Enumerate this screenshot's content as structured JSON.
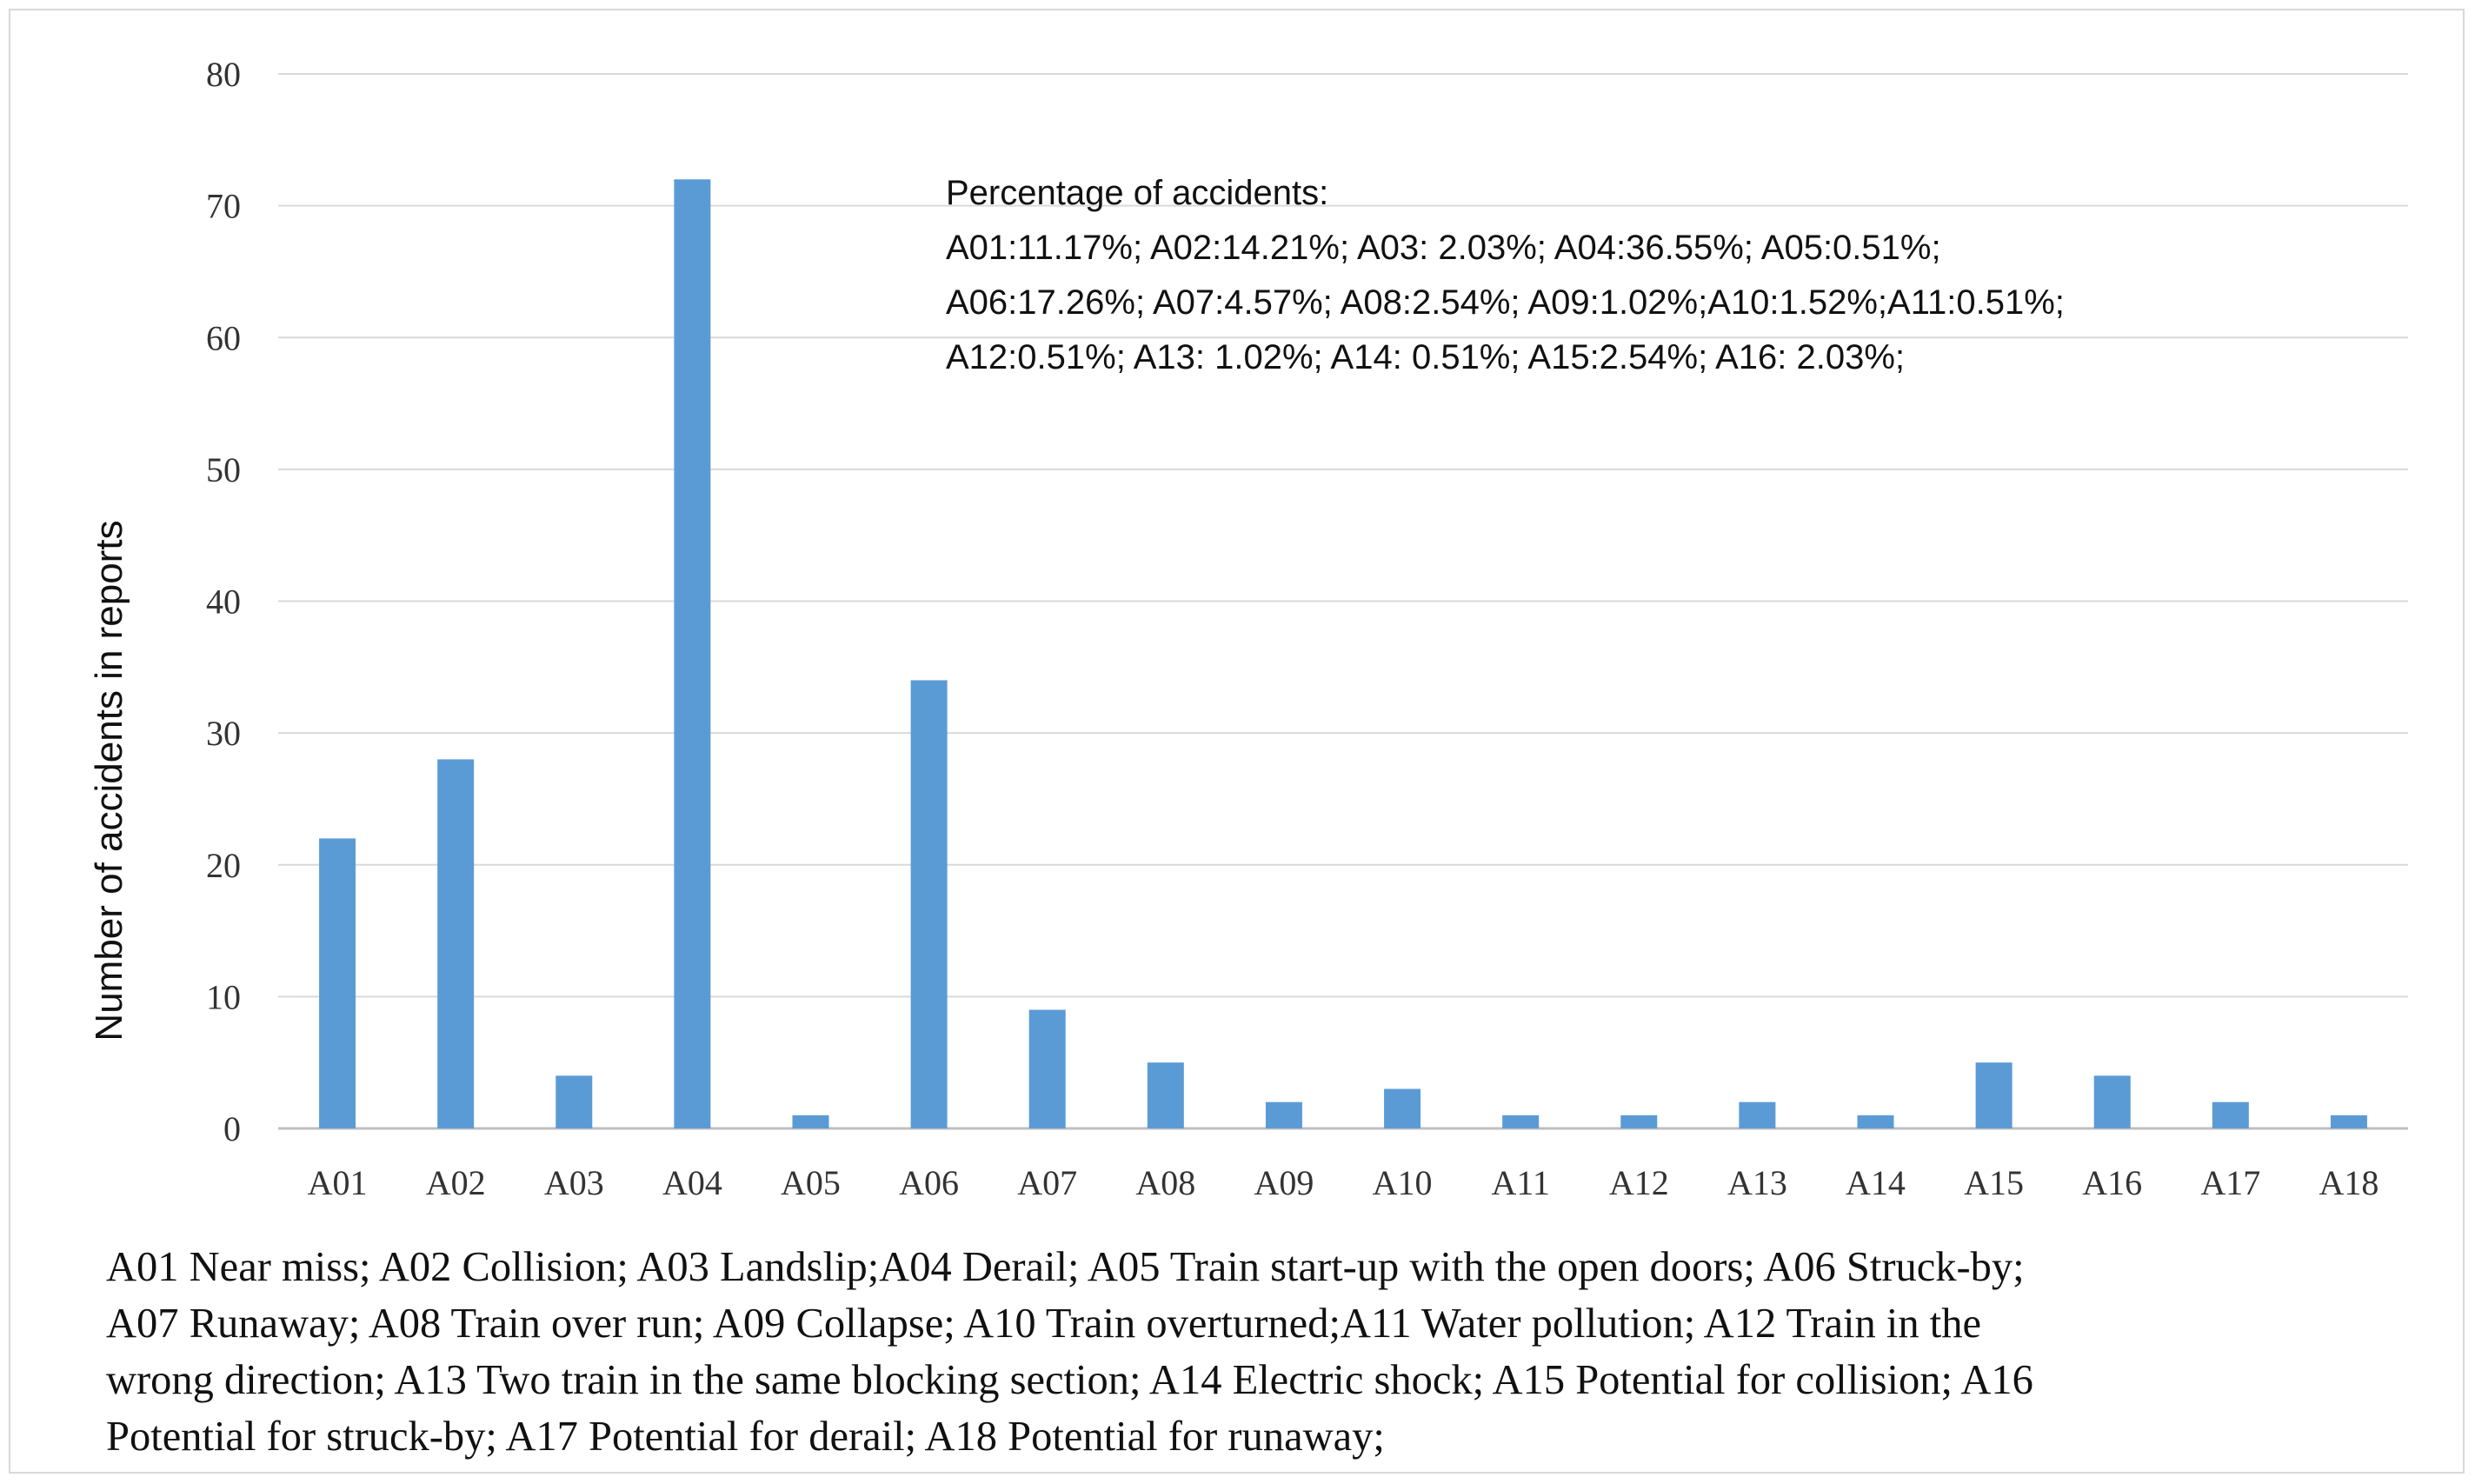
{
  "chart_data": {
    "type": "bar",
    "categories": [
      "A01",
      "A02",
      "A03",
      "A04",
      "A05",
      "A06",
      "A07",
      "A08",
      "A09",
      "A10",
      "A11",
      "A12",
      "A13",
      "A14",
      "A15",
      "A16",
      "A17",
      "A18"
    ],
    "values": [
      22,
      28,
      4,
      72,
      1,
      34,
      9,
      5,
      2,
      3,
      1,
      1,
      2,
      1,
      5,
      4,
      2,
      1
    ],
    "title": "",
    "xlabel": "",
    "ylabel": "Number of accidents in reports",
    "ylim": [
      0,
      80
    ],
    "yticks": [
      0,
      10,
      20,
      30,
      40,
      50,
      60,
      70,
      80
    ],
    "grid": true,
    "bar_color": "#5b9bd5",
    "annotation": [
      "Percentage of accidents:",
      "A01:11.17%; A02:14.21%; A03: 2.03%; A04:36.55%; A05:0.51%;",
      "A06:17.26%; A07:4.57%; A08:2.54%; A09:1.02%;A10:1.52%;A11:0.51%;",
      "A12:0.51%; A13: 1.02%; A14: 0.51%; A15:2.54%; A16: 2.03%;"
    ]
  },
  "caption": [
    "A01 Near miss; A02 Collision; A03 Landslip;A04  Derail;  A05 Train start-up with the open doors; A06 Struck-by;",
    "A07 Runaway;  A08 Train over run; A09 Collapse; A10 Train overturned;A11  Water pollution; A12 Train in the",
    "wrong direction; A13 Two train in the same blocking section; A14 Electric shock; A15 Potential for collision;  A16",
    "Potential for struck-by;  A17 Potential for derail; A18 Potential for runaway;"
  ]
}
